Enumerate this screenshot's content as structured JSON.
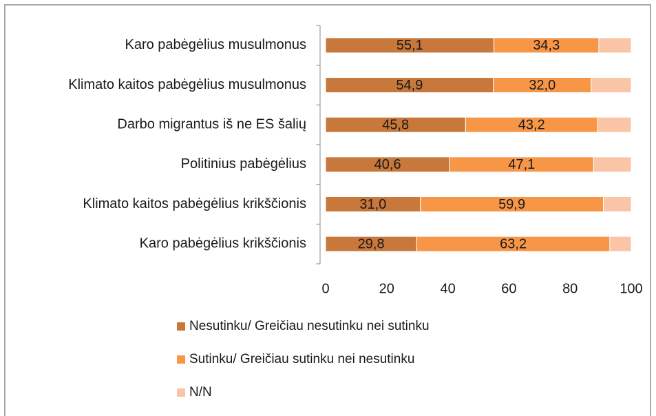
{
  "chart_data": {
    "type": "stacked_bar_horizontal",
    "categories": [
      "Karo pabėgėlius musulmonus",
      "Klimato kaitos pabėgėlius musulmonus",
      "Darbo migrantus iš ne ES šalių",
      "Politinius pabėgėlius",
      "Klimato kaitos pabėgėlius krikščionis",
      "Karo pabėgėlius krikščionis"
    ],
    "series": [
      {
        "name": "Nesutinku/ Greičiau nesutinku nei sutinku",
        "color": "#c8783a",
        "values": [
          55.1,
          54.9,
          45.8,
          40.6,
          31.0,
          29.8
        ],
        "value_labels": [
          "55,1",
          "54,9",
          "45,8",
          "40,6",
          "31,0",
          "29,8"
        ]
      },
      {
        "name": "Sutinku/ Greičiau sutinku nei nesutinku",
        "color": "#f79646",
        "values": [
          34.3,
          32.0,
          43.2,
          47.1,
          59.9,
          63.2
        ],
        "value_labels": [
          "34,3",
          "32,0",
          "43,2",
          "47,1",
          "59,9",
          "63,2"
        ]
      },
      {
        "name": "N/N",
        "color": "#fac4a6",
        "values": [
          10.6,
          13.1,
          11.0,
          12.3,
          9.1,
          7.0
        ]
      }
    ],
    "xlim": [
      0,
      100
    ],
    "xticks": [
      0,
      20,
      40,
      60,
      80,
      100
    ],
    "legend": "bottom"
  }
}
